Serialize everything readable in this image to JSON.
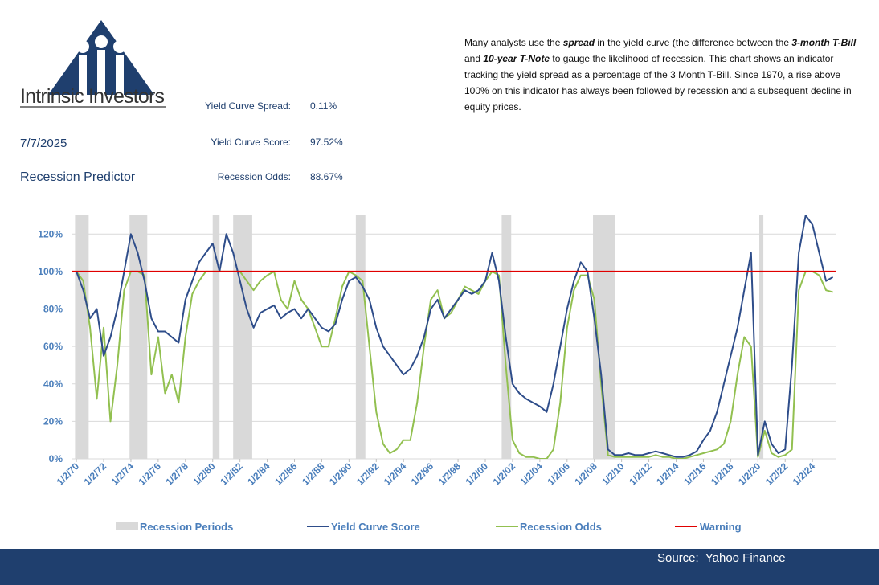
{
  "logo": {
    "name": "Intrinsic Investors"
  },
  "header": {
    "date": "7/7/2025",
    "title": "Recession Predictor"
  },
  "metrics": [
    {
      "label": "Yield Curve Spread:",
      "value": "0.11%"
    },
    {
      "label": "Yield Curve Score:",
      "value": "97.52%"
    },
    {
      "label": "Recession Odds:",
      "value": "88.67%"
    }
  ],
  "description": [
    {
      "text": "Many analysts use the "
    },
    {
      "text": "spread",
      "em": true
    },
    {
      "text": " in the yield curve (the difference between the "
    },
    {
      "text": "3-month T-Bill",
      "em": true
    },
    {
      "text": " and "
    },
    {
      "text": "10-year T-Note",
      "em": true
    },
    {
      "text": "  to gauge the likelihood of recession.  This chart shows an indicator tracking the yield spread as a percentage of the 3 Month T-Bill.  Since 1970, a rise above 100% on this indicator has always been followed by recession and a subsequent decline in equity prices."
    }
  ],
  "source": "Source:  Yahoo Finance",
  "chart_data": {
    "type": "line",
    "xlim": [
      1969.7,
      2025.7
    ],
    "ylim": [
      0,
      130
    ],
    "grid": true,
    "xticks": [
      {
        "value": 1970,
        "label": "1/2/70"
      },
      {
        "value": 1972,
        "label": "1/2/72"
      },
      {
        "value": 1974,
        "label": "1/2/74"
      },
      {
        "value": 1976,
        "label": "1/2/76"
      },
      {
        "value": 1978,
        "label": "1/2/78"
      },
      {
        "value": 1980,
        "label": "1/2/80"
      },
      {
        "value": 1982,
        "label": "1/2/82"
      },
      {
        "value": 1984,
        "label": "1/2/84"
      },
      {
        "value": 1986,
        "label": "1/2/86"
      },
      {
        "value": 1988,
        "label": "1/2/88"
      },
      {
        "value": 1990,
        "label": "1/2/90"
      },
      {
        "value": 1992,
        "label": "1/2/92"
      },
      {
        "value": 1994,
        "label": "1/2/94"
      },
      {
        "value": 1996,
        "label": "1/2/96"
      },
      {
        "value": 1998,
        "label": "1/2/98"
      },
      {
        "value": 2000,
        "label": "1/2/00"
      },
      {
        "value": 2002,
        "label": "1/2/02"
      },
      {
        "value": 2004,
        "label": "1/2/04"
      },
      {
        "value": 2006,
        "label": "1/2/06"
      },
      {
        "value": 2008,
        "label": "1/2/08"
      },
      {
        "value": 2010,
        "label": "1/2/10"
      },
      {
        "value": 2012,
        "label": "1/2/12"
      },
      {
        "value": 2014,
        "label": "1/2/14"
      },
      {
        "value": 2016,
        "label": "1/2/16"
      },
      {
        "value": 2018,
        "label": "1/2/18"
      },
      {
        "value": 2020,
        "label": "1/2/20"
      },
      {
        "value": 2022,
        "label": "1/2/22"
      },
      {
        "value": 2024,
        "label": "1/2/24"
      }
    ],
    "yticks": [
      {
        "value": 0,
        "label": "0%"
      },
      {
        "value": 20,
        "label": "20%"
      },
      {
        "value": 40,
        "label": "40%"
      },
      {
        "value": 60,
        "label": "60%"
      },
      {
        "value": 80,
        "label": "80%"
      },
      {
        "value": 100,
        "label": "100%"
      },
      {
        "value": 120,
        "label": "120%"
      }
    ],
    "recessions": {
      "name": "Recession Periods",
      "color": "#d9d9d9",
      "values": [
        [
          1969.9,
          1970.9
        ],
        [
          1973.9,
          1975.2
        ],
        [
          1980.0,
          1980.5
        ],
        [
          1981.5,
          1982.9
        ],
        [
          1990.5,
          1991.2
        ],
        [
          2001.2,
          2001.9
        ],
        [
          2007.9,
          2009.5
        ],
        [
          2020.1,
          2020.4
        ]
      ]
    },
    "x": [
      1970,
      1970.5,
      1971,
      1971.5,
      1972,
      1972.5,
      1973,
      1973.5,
      1974,
      1974.5,
      1975,
      1975.5,
      1976,
      1976.5,
      1977,
      1977.5,
      1978,
      1978.5,
      1979,
      1979.5,
      1980,
      1980.5,
      1981,
      1981.5,
      1982,
      1982.5,
      1983,
      1983.5,
      1984,
      1984.5,
      1985,
      1985.5,
      1986,
      1986.5,
      1987,
      1987.5,
      1988,
      1988.5,
      1989,
      1989.5,
      1990,
      1990.5,
      1991,
      1991.5,
      1992,
      1992.5,
      1993,
      1993.5,
      1994,
      1994.5,
      1995,
      1995.5,
      1996,
      1996.5,
      1997,
      1997.5,
      1998,
      1998.5,
      1999,
      1999.5,
      2000,
      2000.5,
      2001,
      2001.5,
      2002,
      2002.5,
      2003,
      2003.5,
      2004,
      2004.5,
      2005,
      2005.5,
      2006,
      2006.5,
      2007,
      2007.5,
      2008,
      2008.5,
      2009,
      2009.5,
      2010,
      2010.5,
      2011,
      2011.5,
      2012,
      2012.5,
      2013,
      2013.5,
      2014,
      2014.5,
      2015,
      2015.5,
      2016,
      2016.5,
      2017,
      2017.5,
      2018,
      2018.5,
      2019,
      2019.5,
      2020,
      2020.5,
      2021,
      2021.5,
      2022,
      2022.5,
      2023,
      2023.5,
      2024,
      2024.5,
      2025,
      2025.5
    ],
    "series": [
      {
        "name": "Yield Curve Score",
        "color": "#2e4d8a",
        "values": [
          100,
          90,
          75,
          80,
          55,
          65,
          80,
          100,
          120,
          110,
          95,
          75,
          68,
          68,
          65,
          62,
          85,
          95,
          105,
          110,
          115,
          100,
          120,
          110,
          95,
          80,
          70,
          78,
          80,
          82,
          75,
          78,
          80,
          75,
          80,
          75,
          70,
          68,
          72,
          85,
          95,
          97,
          92,
          85,
          70,
          60,
          55,
          50,
          45,
          48,
          55,
          65,
          80,
          85,
          75,
          80,
          85,
          90,
          88,
          90,
          95,
          110,
          95,
          65,
          40,
          35,
          32,
          30,
          28,
          25,
          40,
          60,
          80,
          95,
          105,
          100,
          75,
          45,
          5,
          2,
          2,
          3,
          2,
          2,
          3,
          4,
          3,
          2,
          1,
          1,
          2,
          4,
          10,
          15,
          25,
          40,
          55,
          70,
          90,
          110,
          2,
          20,
          8,
          3,
          5,
          50,
          110,
          130,
          125,
          110,
          95,
          97
        ]
      },
      {
        "name": "Recession Odds",
        "color": "#92c050",
        "values": [
          100,
          95,
          70,
          32,
          70,
          20,
          50,
          90,
          100,
          100,
          98,
          45,
          65,
          35,
          45,
          30,
          65,
          88,
          95,
          100,
          100,
          100,
          100,
          100,
          100,
          95,
          90,
          95,
          98,
          100,
          85,
          80,
          95,
          85,
          80,
          70,
          60,
          60,
          75,
          92,
          100,
          98,
          95,
          60,
          25,
          8,
          3,
          5,
          10,
          10,
          30,
          60,
          85,
          90,
          75,
          78,
          85,
          92,
          90,
          88,
          95,
          100,
          98,
          50,
          10,
          3,
          1,
          1,
          0,
          0,
          5,
          30,
          70,
          90,
          98,
          98,
          85,
          40,
          2,
          1,
          1,
          1,
          1,
          1,
          1,
          2,
          1,
          1,
          0,
          0,
          1,
          2,
          3,
          4,
          5,
          8,
          20,
          45,
          65,
          60,
          1,
          15,
          3,
          1,
          2,
          5,
          90,
          100,
          100,
          98,
          90,
          89
        ]
      }
    ],
    "threshold": {
      "name": "Warning",
      "color": "#e00000",
      "value": 100
    }
  }
}
